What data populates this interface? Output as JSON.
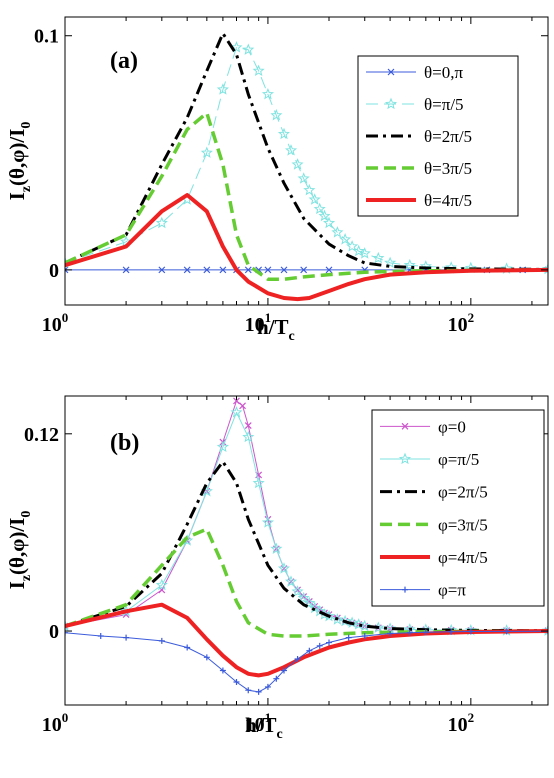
{
  "chart_data": [
    {
      "type": "line",
      "panel_label": "(a)",
      "xlabel": {
        "main": "h/T",
        "sub": "c"
      },
      "ylabel": {
        "a": "I",
        "a_sub": "z",
        "b": "(θ,φ)/I",
        "b_sub": "0"
      },
      "xscale": "log",
      "xlim": [
        1,
        240
      ],
      "ylim": [
        -0.015,
        0.108
      ],
      "xticks": [
        {
          "value": 1,
          "base": "10",
          "exp": "0"
        },
        {
          "value": 10,
          "base": "10",
          "exp": "1"
        },
        {
          "value": 100,
          "base": "10",
          "exp": "2"
        }
      ],
      "yticks": [
        {
          "value": 0,
          "label": "0"
        },
        {
          "value": 0.1,
          "label": "0.1"
        }
      ],
      "legend_position": "top-right",
      "series": [
        {
          "name": "θ=0,π",
          "color": "#3b5bdb",
          "style": "solid",
          "width": 1,
          "marker": "x",
          "x": [
            1,
            2,
            3,
            4,
            5,
            6,
            7,
            8,
            9,
            10,
            12,
            15,
            20,
            30,
            50,
            80,
            120,
            180,
            240
          ],
          "y": [
            0,
            0,
            0,
            0,
            0,
            0,
            0,
            0,
            0,
            0,
            0,
            0,
            0,
            0,
            0,
            0,
            0,
            0,
            0
          ]
        },
        {
          "name": "θ=π/5",
          "color": "#7fe3e0",
          "style": "dashed",
          "width": 1,
          "marker": "star",
          "x": [
            1,
            2,
            3,
            4,
            5,
            6,
            7,
            8,
            9,
            10,
            11,
            12,
            13,
            14,
            15,
            16,
            17,
            18,
            19,
            20,
            22,
            24,
            26,
            28,
            30,
            35,
            40,
            50,
            60,
            80,
            100,
            150,
            240
          ],
          "y": [
            0.003,
            0.012,
            0.02,
            0.03,
            0.05,
            0.077,
            0.095,
            0.094,
            0.085,
            0.075,
            0.066,
            0.058,
            0.051,
            0.045,
            0.039,
            0.034,
            0.03,
            0.026,
            0.023,
            0.02,
            0.016,
            0.013,
            0.01,
            0.008,
            0.007,
            0.005,
            0.003,
            0.002,
            0.0015,
            0.001,
            0.0008,
            0.0005,
            0.0003
          ]
        },
        {
          "name": "θ=2π/5",
          "color": "#000000",
          "style": "dashdot",
          "width": 3,
          "x": [
            1,
            2,
            3,
            4,
            5,
            6,
            7,
            8,
            10,
            12,
            15,
            20,
            25,
            30,
            40,
            60,
            100,
            240
          ],
          "y": [
            0.003,
            0.015,
            0.045,
            0.065,
            0.085,
            0.101,
            0.092,
            0.075,
            0.052,
            0.037,
            0.022,
            0.011,
            0.006,
            0.003,
            0.0015,
            0.0008,
            0.0004,
            0.0002
          ]
        },
        {
          "name": "θ=3π/5",
          "color": "#66cc33",
          "style": "dashed",
          "width": 3.5,
          "x": [
            1,
            2,
            3,
            4,
            5,
            6,
            7,
            8,
            10,
            12,
            15,
            20,
            30,
            50,
            100,
            240
          ],
          "y": [
            0.003,
            0.015,
            0.04,
            0.06,
            0.067,
            0.045,
            0.015,
            0.002,
            -0.004,
            -0.004,
            -0.003,
            -0.002,
            -0.001,
            -0.0005,
            -0.0002,
            0
          ]
        },
        {
          "name": "θ=4π/5",
          "color": "#ee2222",
          "style": "solid",
          "width": 4,
          "x": [
            1,
            2,
            3,
            4,
            5,
            6,
            7,
            8,
            10,
            12,
            14,
            16,
            20,
            25,
            30,
            40,
            60,
            100,
            240
          ],
          "y": [
            0.002,
            0.01,
            0.025,
            0.032,
            0.025,
            0.01,
            0.0,
            -0.005,
            -0.01,
            -0.012,
            -0.0125,
            -0.012,
            -0.009,
            -0.006,
            -0.004,
            -0.002,
            -0.001,
            -0.0004,
            0
          ]
        }
      ]
    },
    {
      "type": "line",
      "panel_label": "(b)",
      "xlabel": {
        "main": "h/T",
        "sub": "c"
      },
      "ylabel": {
        "a": "I",
        "a_sub": "z",
        "b": "(θ,φ)/I",
        "b_sub": "0"
      },
      "xscale": "log",
      "xlim": [
        1,
        240
      ],
      "ylim": [
        -0.045,
        0.143
      ],
      "xticks": [
        {
          "value": 1,
          "base": "10",
          "exp": "0"
        },
        {
          "value": 10,
          "base": "10",
          "exp": "1"
        },
        {
          "value": 100,
          "base": "10",
          "exp": "2"
        }
      ],
      "yticks": [
        {
          "value": 0,
          "label": "0"
        },
        {
          "value": 0.12,
          "label": "0.12"
        }
      ],
      "legend_position": "top-right",
      "series": [
        {
          "name": "φ=0",
          "color": "#cc55cc",
          "style": "solid",
          "width": 1,
          "marker": "x",
          "x": [
            1,
            2,
            3,
            4,
            5,
            6,
            7,
            7.5,
            8,
            9,
            10,
            11,
            12,
            13,
            14,
            15,
            16,
            17,
            18,
            19,
            20,
            22,
            24,
            26,
            28,
            30,
            35,
            40,
            50,
            60,
            80,
            100,
            150,
            240
          ],
          "y": [
            0.003,
            0.01,
            0.025,
            0.055,
            0.085,
            0.115,
            0.14,
            0.137,
            0.125,
            0.095,
            0.068,
            0.05,
            0.038,
            0.03,
            0.025,
            0.021,
            0.018,
            0.015,
            0.013,
            0.011,
            0.01,
            0.008,
            0.006,
            0.005,
            0.004,
            0.003,
            0.002,
            0.0015,
            0.001,
            0.0008,
            0.0005,
            0.0004,
            0.0003,
            0.0002
          ]
        },
        {
          "name": "φ=π/5",
          "color": "#7fe3e0",
          "style": "solid",
          "width": 1,
          "marker": "star",
          "x": [
            1,
            2,
            3,
            4,
            5,
            6,
            7,
            8,
            9,
            10,
            11,
            12,
            13,
            14,
            15,
            16,
            17,
            18,
            19,
            20,
            22,
            24,
            26,
            28,
            30,
            35,
            40,
            50,
            60,
            80,
            100,
            150,
            240
          ],
          "y": [
            0.003,
            0.012,
            0.028,
            0.055,
            0.085,
            0.112,
            0.133,
            0.118,
            0.09,
            0.066,
            0.05,
            0.038,
            0.03,
            0.024,
            0.02,
            0.017,
            0.014,
            0.012,
            0.01,
            0.009,
            0.007,
            0.006,
            0.005,
            0.004,
            0.003,
            0.002,
            0.0015,
            0.001,
            0.0008,
            0.0005,
            0.0004,
            0.0003,
            0.0002
          ]
        },
        {
          "name": "φ=2π/5",
          "color": "#000000",
          "style": "dashdot",
          "width": 3,
          "x": [
            1,
            2,
            3,
            4,
            5,
            6,
            7,
            8,
            10,
            12,
            15,
            20,
            25,
            30,
            40,
            60,
            100,
            240
          ],
          "y": [
            0.003,
            0.015,
            0.035,
            0.065,
            0.09,
            0.103,
            0.09,
            0.068,
            0.04,
            0.026,
            0.016,
            0.009,
            0.005,
            0.003,
            0.0015,
            0.0008,
            0.0004,
            0.0002
          ]
        },
        {
          "name": "φ=3π/5",
          "color": "#66cc33",
          "style": "dashed",
          "width": 3.5,
          "x": [
            1,
            2,
            3,
            4,
            5,
            6,
            7,
            8,
            10,
            12,
            15,
            20,
            30,
            50,
            100,
            240
          ],
          "y": [
            0.003,
            0.016,
            0.04,
            0.057,
            0.062,
            0.04,
            0.018,
            0.005,
            -0.002,
            -0.003,
            -0.003,
            -0.002,
            -0.001,
            -0.0005,
            -0.0002,
            0
          ]
        },
        {
          "name": "φ=4π/5",
          "color": "#ee2222",
          "style": "solid",
          "width": 4,
          "x": [
            1,
            2,
            3,
            4,
            5,
            6,
            7,
            8,
            9,
            10,
            12,
            15,
            20,
            25,
            30,
            40,
            60,
            100,
            240
          ],
          "y": [
            0.003,
            0.012,
            0.016,
            0.008,
            -0.005,
            -0.015,
            -0.022,
            -0.026,
            -0.027,
            -0.026,
            -0.022,
            -0.016,
            -0.01,
            -0.007,
            -0.005,
            -0.003,
            -0.0015,
            -0.0006,
            0
          ]
        },
        {
          "name": "φ=π",
          "color": "#3b5bdb",
          "style": "solid",
          "width": 1,
          "marker": "plus",
          "x": [
            1,
            1.5,
            2,
            3,
            4,
            5,
            6,
            7,
            8,
            9,
            10,
            11,
            12,
            14,
            16,
            18,
            20,
            25,
            30,
            40,
            50,
            60,
            80,
            100,
            150,
            240
          ],
          "y": [
            -0.001,
            -0.003,
            -0.004,
            -0.006,
            -0.01,
            -0.016,
            -0.024,
            -0.031,
            -0.036,
            -0.037,
            -0.034,
            -0.029,
            -0.024,
            -0.017,
            -0.012,
            -0.009,
            -0.007,
            -0.004,
            -0.003,
            -0.0015,
            -0.001,
            -0.0007,
            -0.0004,
            -0.0003,
            -0.0002,
            -0.0001
          ]
        }
      ]
    }
  ]
}
